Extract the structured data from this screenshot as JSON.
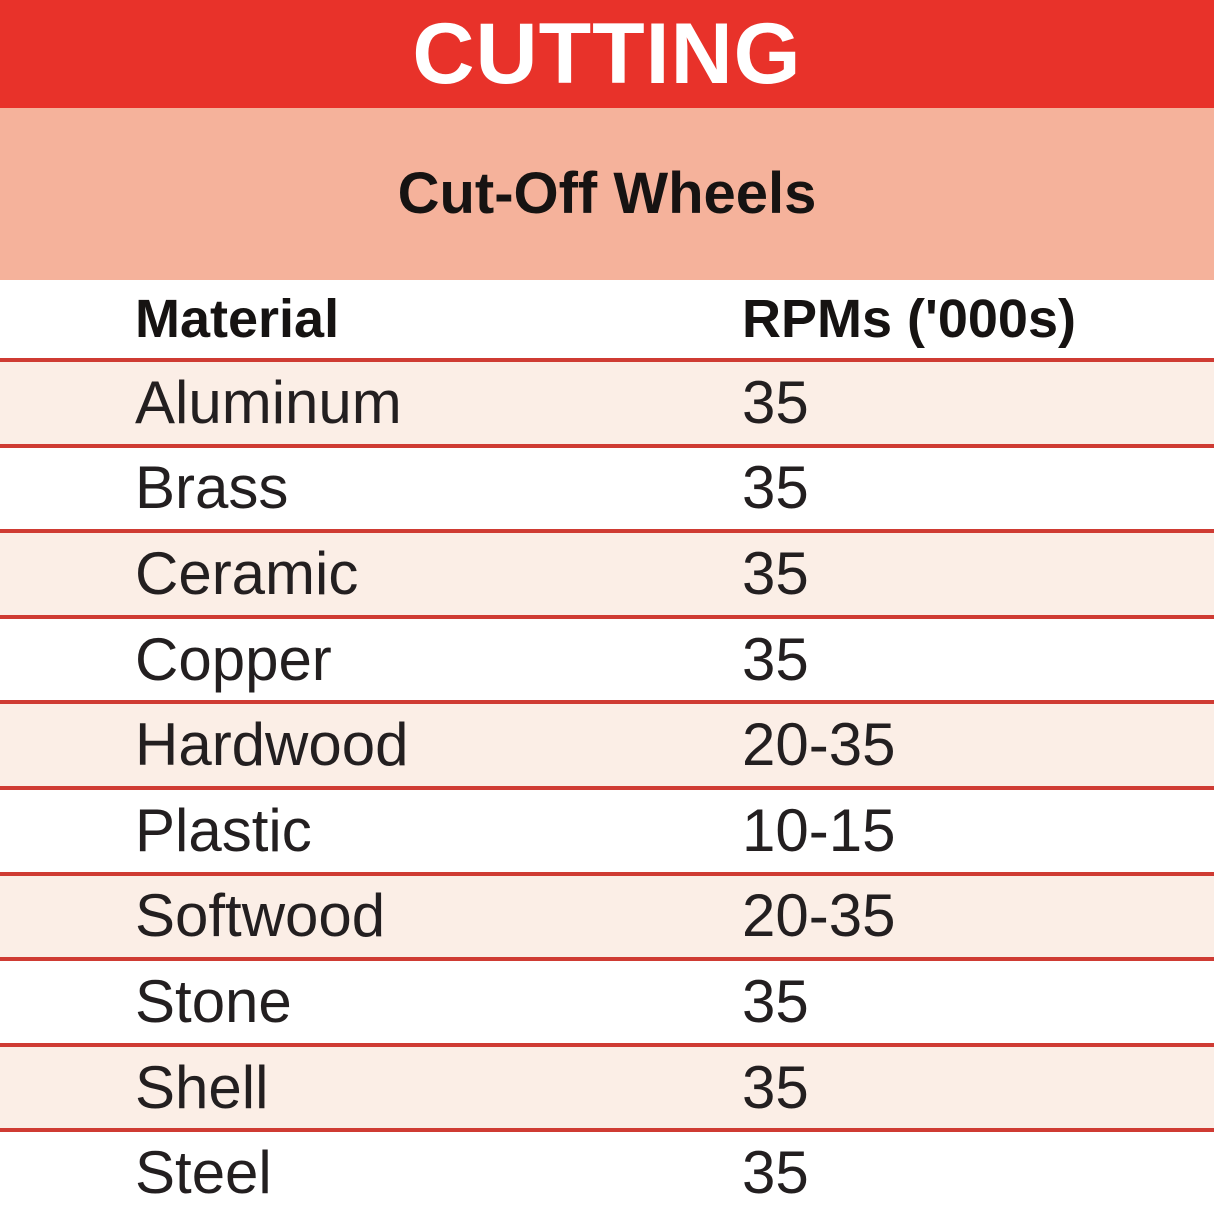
{
  "banner": {
    "title": "CUTTING"
  },
  "subbanner": {
    "title": "Cut-Off Wheels"
  },
  "table": {
    "columns": [
      "Material",
      "RPMs ('000s)"
    ],
    "rows": [
      {
        "material": "Aluminum",
        "rpm": "35"
      },
      {
        "material": "Brass",
        "rpm": "35"
      },
      {
        "material": "Ceramic",
        "rpm": "35"
      },
      {
        "material": "Copper",
        "rpm": "35"
      },
      {
        "material": "Hardwood",
        "rpm": "20-35"
      },
      {
        "material": "Plastic",
        "rpm": "10-15"
      },
      {
        "material": "Softwood",
        "rpm": "20-35"
      },
      {
        "material": "Stone",
        "rpm": "35"
      },
      {
        "material": "Shell",
        "rpm": "35"
      },
      {
        "material": "Steel",
        "rpm": "35"
      }
    ]
  },
  "colors": {
    "banner_red": "#e8322a",
    "salmon_band": "#f5b29b",
    "row_pink": "#fbeee6",
    "divider_red": "#cf3b33",
    "text_black": "#231f20",
    "banner_text_white": "#ffffff"
  },
  "chart_data": {
    "type": "table",
    "title": "CUTTING",
    "subtitle": "Cut-Off Wheels",
    "columns": [
      "Material",
      "RPMs ('000s)"
    ],
    "rows": [
      [
        "Aluminum",
        "35"
      ],
      [
        "Brass",
        "35"
      ],
      [
        "Ceramic",
        "35"
      ],
      [
        "Copper",
        "35"
      ],
      [
        "Hardwood",
        "20-35"
      ],
      [
        "Plastic",
        "10-15"
      ],
      [
        "Softwood",
        "20-35"
      ],
      [
        "Stone",
        "35"
      ],
      [
        "Shell",
        "35"
      ],
      [
        "Steel",
        "35"
      ]
    ],
    "notes": "RPM values are in thousands; alternating row shading; red divider lines between rows"
  }
}
